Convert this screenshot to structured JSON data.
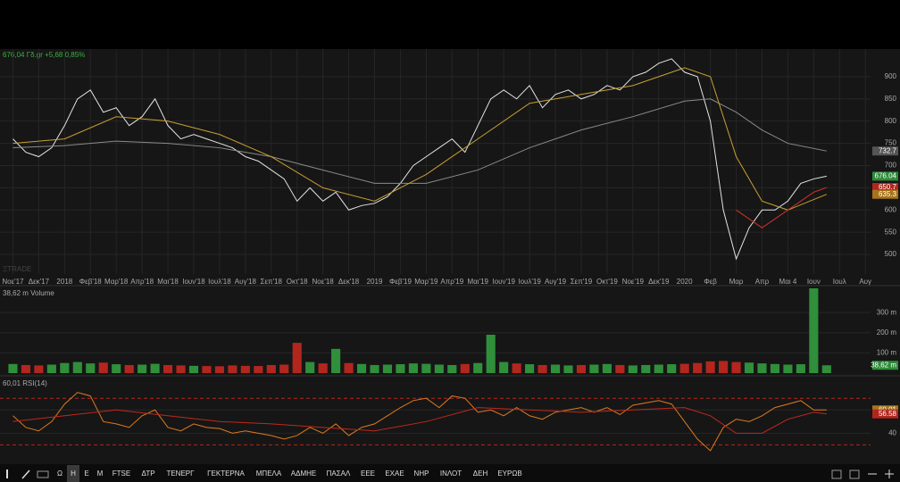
{
  "header": {
    "quote": "676,04 Γδ.gr +5,68 0,85%"
  },
  "chart_data": [
    {
      "type": "line",
      "watermark": "ΞTRADE",
      "x": [
        0,
        0.5,
        1,
        1.5,
        2,
        2.5,
        3,
        3.5,
        4,
        4.5,
        5,
        5.5,
        6,
        6.5,
        7,
        7.5,
        8,
        8.5,
        9,
        9.5,
        10,
        10.5,
        11,
        11.5,
        12,
        12.5,
        13,
        13.5,
        14,
        14.5,
        15,
        15.5,
        16,
        16.5,
        17,
        17.5,
        18,
        18.5,
        19,
        19.5,
        20,
        20.5,
        21,
        21.5,
        22,
        22.5,
        23,
        23.5,
        24,
        24.5,
        25,
        25.5,
        26,
        26.5,
        27,
        27.5,
        28,
        28.5,
        29,
        29.5,
        30,
        30.5,
        31,
        31.5
      ],
      "series": [
        {
          "color": "#e4e4e4",
          "values": [
            760,
            730,
            720,
            740,
            790,
            850,
            870,
            820,
            830,
            790,
            810,
            850,
            790,
            760,
            770,
            760,
            750,
            740,
            720,
            710,
            690,
            670,
            620,
            650,
            620,
            640,
            600,
            610,
            615,
            630,
            660,
            700,
            720,
            740,
            760,
            730,
            790,
            850,
            870,
            850,
            880,
            830,
            860,
            870,
            850,
            860,
            880,
            870,
            900,
            910,
            930,
            940,
            910,
            900,
            800,
            600,
            490,
            560,
            600,
            600,
            620,
            660,
            670,
            676.04
          ]
        },
        {
          "color": "#8a8a8a",
          "x": [
            0,
            2,
            4,
            6,
            8,
            10,
            12,
            14,
            16,
            18,
            20,
            22,
            24,
            26,
            27,
            28,
            29,
            30,
            31.5
          ],
          "values": [
            740,
            745,
            755,
            750,
            740,
            720,
            690,
            660,
            660,
            690,
            740,
            780,
            810,
            845,
            850,
            820,
            780,
            750,
            732.7
          ]
        },
        {
          "color": "#c8a032",
          "x": [
            0,
            2,
            4,
            6,
            8,
            10,
            12,
            14,
            16,
            18,
            20,
            22,
            24,
            26,
            27,
            28,
            29,
            30,
            31.5
          ],
          "values": [
            750,
            760,
            810,
            800,
            770,
            720,
            650,
            620,
            680,
            760,
            840,
            860,
            880,
            920,
            900,
            720,
            620,
            600,
            635.3
          ]
        },
        {
          "color": "#d0312d",
          "x": [
            28,
            29,
            30,
            31,
            31.5
          ],
          "values": [
            600,
            560,
            600,
            640,
            650.7
          ]
        }
      ],
      "price_tags": [
        {
          "value": 732.7,
          "color": "#555555"
        },
        {
          "value": 676.04,
          "color": "#2e8b3a"
        },
        {
          "value": 650.7,
          "color": "#b3261e"
        },
        {
          "value": 635.3,
          "color": "#a8741a"
        }
      ],
      "xlim": [
        -0.5,
        33.2
      ],
      "ylim": [
        456,
        962
      ],
      "yticks": [
        500,
        550,
        600,
        650,
        700,
        750,
        800,
        850,
        900
      ],
      "xticks": [
        {
          "value": 0,
          "label": "Νοε'17"
        },
        {
          "value": 1,
          "label": "Δεκ'17"
        },
        {
          "value": 2,
          "label": "2018"
        },
        {
          "value": 3,
          "label": "Φεβ'18"
        },
        {
          "value": 4,
          "label": "Μαρ'18"
        },
        {
          "value": 5,
          "label": "Απρ'18"
        },
        {
          "value": 6,
          "label": "Μαι'18"
        },
        {
          "value": 7,
          "label": "Ιουν'18"
        },
        {
          "value": 8,
          "label": "Ιουλ'18"
        },
        {
          "value": 9,
          "label": "Αυγ'18"
        },
        {
          "value": 10,
          "label": "Σεπ'18"
        },
        {
          "value": 11,
          "label": "Οκτ'18"
        },
        {
          "value": 12,
          "label": "Νοε'18"
        },
        {
          "value": 13,
          "label": "Δεκ'18"
        },
        {
          "value": 14,
          "label": "2019"
        },
        {
          "value": 15,
          "label": "Φεβ'19"
        },
        {
          "value": 16,
          "label": "Μαρ'19"
        },
        {
          "value": 17,
          "label": "Απρ'19"
        },
        {
          "value": 18,
          "label": "Μαι'19"
        },
        {
          "value": 19,
          "label": "Ιουν'19"
        },
        {
          "value": 20,
          "label": "Ιουλ'19"
        },
        {
          "value": 21,
          "label": "Αυγ'19"
        },
        {
          "value": 22,
          "label": "Σεπ'19"
        },
        {
          "value": 23,
          "label": "Οκτ'19"
        },
        {
          "value": 24,
          "label": "Νοε'19"
        },
        {
          "value": 25,
          "label": "Δεκ'19"
        },
        {
          "value": 26,
          "label": "2020"
        },
        {
          "value": 27,
          "label": "Φεβ"
        },
        {
          "value": 28,
          "label": "Μαρ"
        },
        {
          "value": 29,
          "label": "Απρ"
        },
        {
          "value": 30,
          "label": "Μαι 4"
        },
        {
          "value": 31,
          "label": "Ιουν"
        },
        {
          "value": 32,
          "label": "Ιουλ"
        },
        {
          "value": 33,
          "label": "Αυγ"
        }
      ],
      "grid": true
    },
    {
      "type": "bar",
      "title": "38,62 m Volume",
      "up_color": "#2f8f3a",
      "down_color": "#b3261e",
      "x": [
        0,
        0.5,
        1,
        1.5,
        2,
        2.5,
        3,
        3.5,
        4,
        4.5,
        5,
        5.5,
        6,
        6.5,
        7,
        7.5,
        8,
        8.5,
        9,
        9.5,
        10,
        10.5,
        11,
        11.5,
        12,
        12.5,
        13,
        13.5,
        14,
        14.5,
        15,
        15.5,
        16,
        16.5,
        17,
        17.5,
        18,
        18.5,
        19,
        19.5,
        20,
        20.5,
        21,
        21.5,
        22,
        22.5,
        23,
        23.5,
        24,
        24.5,
        25,
        25.5,
        26,
        26.5,
        27,
        27.5,
        28,
        28.5,
        29,
        29.5,
        30,
        30.5,
        31,
        31.5
      ],
      "values": [
        45,
        40,
        38,
        42,
        50,
        55,
        48,
        52,
        44,
        40,
        42,
        46,
        40,
        38,
        36,
        35,
        34,
        38,
        36,
        35,
        40,
        42,
        150,
        55,
        48,
        120,
        50,
        45,
        40,
        42,
        44,
        48,
        46,
        42,
        40,
        45,
        50,
        190,
        55,
        48,
        44,
        40,
        42,
        38,
        40,
        42,
        45,
        40,
        38,
        40,
        42,
        44,
        46,
        50,
        58,
        60,
        55,
        52,
        48,
        45,
        42,
        44,
        420,
        38.62
      ],
      "xlim": [
        -0.5,
        33.2
      ],
      "ylim": [
        0,
        420
      ],
      "yticks": [
        {
          "value": 100,
          "label": "100 m"
        },
        {
          "value": 200,
          "label": "200 m"
        },
        {
          "value": 300,
          "label": "300 m"
        }
      ],
      "tag": {
        "value": 38.62,
        "label": "38,62 m",
        "color": "#2e8b3a"
      }
    },
    {
      "type": "line",
      "title": "60,01 RSI(14)",
      "series": [
        {
          "color": "#e07a1f",
          "x": [
            0,
            0.5,
            1,
            1.5,
            2,
            2.5,
            3,
            3.5,
            4,
            4.5,
            5,
            5.5,
            6,
            6.5,
            7,
            7.5,
            8,
            8.5,
            9,
            9.5,
            10,
            10.5,
            11,
            11.5,
            12,
            12.5,
            13,
            13.5,
            14,
            14.5,
            15,
            15.5,
            16,
            16.5,
            17,
            17.5,
            18,
            18.5,
            19,
            19.5,
            20,
            20.5,
            21,
            21.5,
            22,
            22.5,
            23,
            23.5,
            24,
            24.5,
            25,
            25.5,
            26,
            26.5,
            27,
            27.5,
            28,
            28.5,
            29,
            29.5,
            30,
            30.5,
            31,
            31.5
          ],
          "values": [
            55,
            45,
            42,
            50,
            65,
            75,
            72,
            50,
            48,
            45,
            55,
            60,
            45,
            42,
            48,
            45,
            44,
            40,
            42,
            40,
            38,
            35,
            38,
            45,
            40,
            48,
            38,
            45,
            48,
            55,
            62,
            68,
            70,
            62,
            72,
            70,
            58,
            60,
            55,
            62,
            55,
            52,
            58,
            60,
            62,
            58,
            62,
            56,
            64,
            66,
            68,
            65,
            50,
            35,
            25,
            45,
            52,
            50,
            55,
            62,
            65,
            68,
            60,
            60.01
          ]
        },
        {
          "color": "#c0281e",
          "x": [
            0,
            2,
            4,
            6,
            8,
            10,
            12,
            14,
            16,
            18,
            20,
            22,
            24,
            26,
            27,
            28,
            29,
            30,
            31,
            31.5
          ],
          "values": [
            50,
            55,
            60,
            55,
            50,
            48,
            45,
            42,
            50,
            62,
            60,
            58,
            60,
            62,
            55,
            40,
            40,
            52,
            58,
            56.58
          ]
        }
      ],
      "tags": [
        {
          "value": 60.01,
          "color": "#a8741a"
        },
        {
          "value": 56.58,
          "color": "#b3261e"
        }
      ],
      "levels": [
        30,
        70
      ],
      "xlim": [
        -0.5,
        33.2
      ],
      "ylim": [
        15,
        87
      ],
      "yticks": [
        40,
        60
      ]
    }
  ],
  "toolbar": {
    "items": [
      "Ω",
      "Η",
      "Ε",
      "Μ",
      "FTSE",
      "ΔΤΡ",
      "ΤΕΝΕΡΓ",
      "ΓΕΚΤΕΡΝΑ",
      "ΜΠΕΛΑ",
      "ΑΔΜΗΕ",
      "ΠΑΣΑΛ",
      "ΕΕΕ",
      "ΕΧΑΕ",
      "ΝΗΡ",
      "ΙΝΛΟΤ",
      "ΔΕΗ",
      "ΕΥΡΩΒ"
    ],
    "active": 1
  }
}
